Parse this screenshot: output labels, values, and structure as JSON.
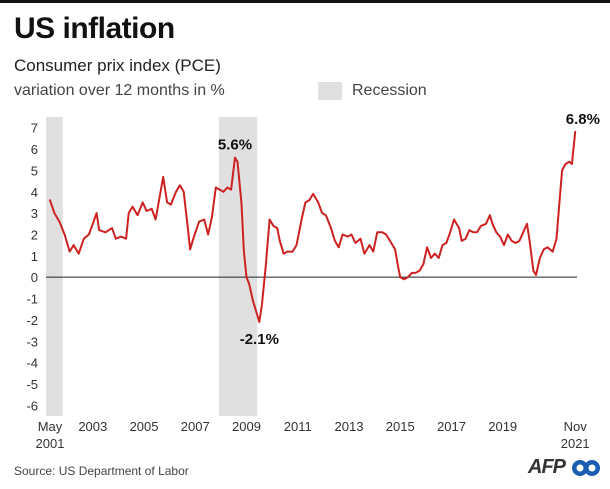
{
  "header": {
    "title": "US inflation",
    "subtitle": "Consumer prix index (PCE)",
    "unit_label": "variation over 12 months in %"
  },
  "legend": {
    "recession_label": "Recession",
    "recession_color": "#e0e0e0"
  },
  "footer": {
    "source": "Source: US Department of Labor",
    "logo_text": "AFP"
  },
  "colors": {
    "line": "#cc2222",
    "axis": "#222222",
    "annotation": "#111111"
  },
  "chart_data": {
    "type": "line",
    "xlim": [
      2001.33,
      2021.9
    ],
    "ylim": [
      -6.5,
      7.5
    ],
    "y_ticks": [
      "7",
      "6",
      "5",
      "4",
      "3",
      "2",
      "1",
      "0",
      "-1",
      "-2",
      "-3",
      "-4",
      "-5",
      "-6"
    ],
    "x_tick_labels": [
      {
        "x": 2001.33,
        "label": "May"
      },
      {
        "x": 2003,
        "label": "2003"
      },
      {
        "x": 2005,
        "label": "2005"
      },
      {
        "x": 2007,
        "label": "2007"
      },
      {
        "x": 2009,
        "label": "2009"
      },
      {
        "x": 2011,
        "label": "2011"
      },
      {
        "x": 2013,
        "label": "2013"
      },
      {
        "x": 2015,
        "label": "2015"
      },
      {
        "x": 2017,
        "label": "2017"
      },
      {
        "x": 2019,
        "label": "2019"
      },
      {
        "x": 2021.83,
        "label": "Nov"
      }
    ],
    "x_tick_sublabels": [
      {
        "x": 2001.33,
        "label": "2001"
      },
      {
        "x": 2021.83,
        "label": "2021"
      }
    ],
    "recessions": [
      [
        2001.17,
        2001.83
      ],
      [
        2007.92,
        2009.42
      ]
    ],
    "series": [
      {
        "points": [
          [
            2001.33,
            3.6
          ],
          [
            2001.5,
            3.0
          ],
          [
            2001.7,
            2.6
          ],
          [
            2001.9,
            2.0
          ],
          [
            2002.1,
            1.2
          ],
          [
            2002.25,
            1.5
          ],
          [
            2002.45,
            1.1
          ],
          [
            2002.65,
            1.8
          ],
          [
            2002.85,
            2.0
          ],
          [
            2003.0,
            2.5
          ],
          [
            2003.15,
            3.0
          ],
          [
            2003.25,
            2.2
          ],
          [
            2003.5,
            2.1
          ],
          [
            2003.75,
            2.3
          ],
          [
            2003.9,
            1.8
          ],
          [
            2004.1,
            1.9
          ],
          [
            2004.3,
            1.8
          ],
          [
            2004.4,
            3.0
          ],
          [
            2004.55,
            3.3
          ],
          [
            2004.75,
            2.9
          ],
          [
            2004.95,
            3.5
          ],
          [
            2005.1,
            3.1
          ],
          [
            2005.3,
            3.2
          ],
          [
            2005.45,
            2.7
          ],
          [
            2005.6,
            3.7
          ],
          [
            2005.75,
            4.7
          ],
          [
            2005.9,
            3.5
          ],
          [
            2006.05,
            3.4
          ],
          [
            2006.25,
            4.0
          ],
          [
            2006.4,
            4.3
          ],
          [
            2006.55,
            4.0
          ],
          [
            2006.7,
            2.4
          ],
          [
            2006.8,
            1.3
          ],
          [
            2006.95,
            1.9
          ],
          [
            2007.15,
            2.6
          ],
          [
            2007.35,
            2.7
          ],
          [
            2007.5,
            2.0
          ],
          [
            2007.65,
            2.8
          ],
          [
            2007.8,
            4.2
          ],
          [
            2007.95,
            4.1
          ],
          [
            2008.1,
            4.0
          ],
          [
            2008.25,
            4.2
          ],
          [
            2008.4,
            4.1
          ],
          [
            2008.55,
            5.6
          ],
          [
            2008.65,
            5.4
          ],
          [
            2008.8,
            3.5
          ],
          [
            2008.9,
            1.2
          ],
          [
            2009.0,
            0.0
          ],
          [
            2009.1,
            -0.3
          ],
          [
            2009.25,
            -1.1
          ],
          [
            2009.4,
            -1.7
          ],
          [
            2009.5,
            -2.1
          ],
          [
            2009.6,
            -1.3
          ],
          [
            2009.75,
            0.5
          ],
          [
            2009.9,
            2.7
          ],
          [
            2010.05,
            2.4
          ],
          [
            2010.2,
            2.3
          ],
          [
            2010.3,
            1.7
          ],
          [
            2010.45,
            1.1
          ],
          [
            2010.6,
            1.2
          ],
          [
            2010.8,
            1.2
          ],
          [
            2010.95,
            1.5
          ],
          [
            2011.15,
            2.7
          ],
          [
            2011.3,
            3.5
          ],
          [
            2011.45,
            3.6
          ],
          [
            2011.6,
            3.9
          ],
          [
            2011.8,
            3.5
          ],
          [
            2011.95,
            3.0
          ],
          [
            2012.1,
            2.9
          ],
          [
            2012.3,
            2.3
          ],
          [
            2012.45,
            1.7
          ],
          [
            2012.6,
            1.4
          ],
          [
            2012.75,
            2.0
          ],
          [
            2012.95,
            1.9
          ],
          [
            2013.1,
            2.0
          ],
          [
            2013.25,
            1.6
          ],
          [
            2013.45,
            1.8
          ],
          [
            2013.6,
            1.1
          ],
          [
            2013.8,
            1.5
          ],
          [
            2013.95,
            1.2
          ],
          [
            2014.1,
            2.1
          ],
          [
            2014.3,
            2.1
          ],
          [
            2014.45,
            2.0
          ],
          [
            2014.6,
            1.7
          ],
          [
            2014.8,
            1.3
          ],
          [
            2014.9,
            0.6
          ],
          [
            2015.0,
            0.0
          ],
          [
            2015.15,
            -0.1
          ],
          [
            2015.3,
            0.0
          ],
          [
            2015.45,
            0.2
          ],
          [
            2015.6,
            0.2
          ],
          [
            2015.75,
            0.3
          ],
          [
            2015.9,
            0.6
          ],
          [
            2016.05,
            1.4
          ],
          [
            2016.2,
            0.9
          ],
          [
            2016.35,
            1.1
          ],
          [
            2016.5,
            0.9
          ],
          [
            2016.65,
            1.5
          ],
          [
            2016.8,
            1.6
          ],
          [
            2016.95,
            2.1
          ],
          [
            2017.1,
            2.7
          ],
          [
            2017.3,
            2.3
          ],
          [
            2017.4,
            1.7
          ],
          [
            2017.55,
            1.8
          ],
          [
            2017.7,
            2.2
          ],
          [
            2017.85,
            2.1
          ],
          [
            2018.0,
            2.1
          ],
          [
            2018.15,
            2.4
          ],
          [
            2018.35,
            2.5
          ],
          [
            2018.5,
            2.9
          ],
          [
            2018.6,
            2.5
          ],
          [
            2018.75,
            2.1
          ],
          [
            2018.9,
            1.9
          ],
          [
            2019.05,
            1.5
          ],
          [
            2019.2,
            2.0
          ],
          [
            2019.35,
            1.7
          ],
          [
            2019.5,
            1.6
          ],
          [
            2019.65,
            1.7
          ],
          [
            2019.8,
            2.1
          ],
          [
            2019.95,
            2.5
          ],
          [
            2020.05,
            1.7
          ],
          [
            2020.2,
            0.3
          ],
          [
            2020.3,
            0.1
          ],
          [
            2020.45,
            0.9
          ],
          [
            2020.6,
            1.3
          ],
          [
            2020.75,
            1.4
          ],
          [
            2020.95,
            1.2
          ],
          [
            2021.1,
            1.8
          ],
          [
            2021.22,
            3.6
          ],
          [
            2021.32,
            5.0
          ],
          [
            2021.45,
            5.3
          ],
          [
            2021.6,
            5.4
          ],
          [
            2021.7,
            5.3
          ],
          [
            2021.83,
            6.8
          ]
        ]
      }
    ],
    "annotations": [
      {
        "x": 2008.55,
        "y": 5.6,
        "label": "5.6%",
        "position": "above"
      },
      {
        "x": 2009.5,
        "y": -2.1,
        "label": "-2.1%",
        "position": "below"
      },
      {
        "x": 2021.83,
        "y": 6.8,
        "label": "6.8%",
        "position": "above"
      }
    ]
  }
}
